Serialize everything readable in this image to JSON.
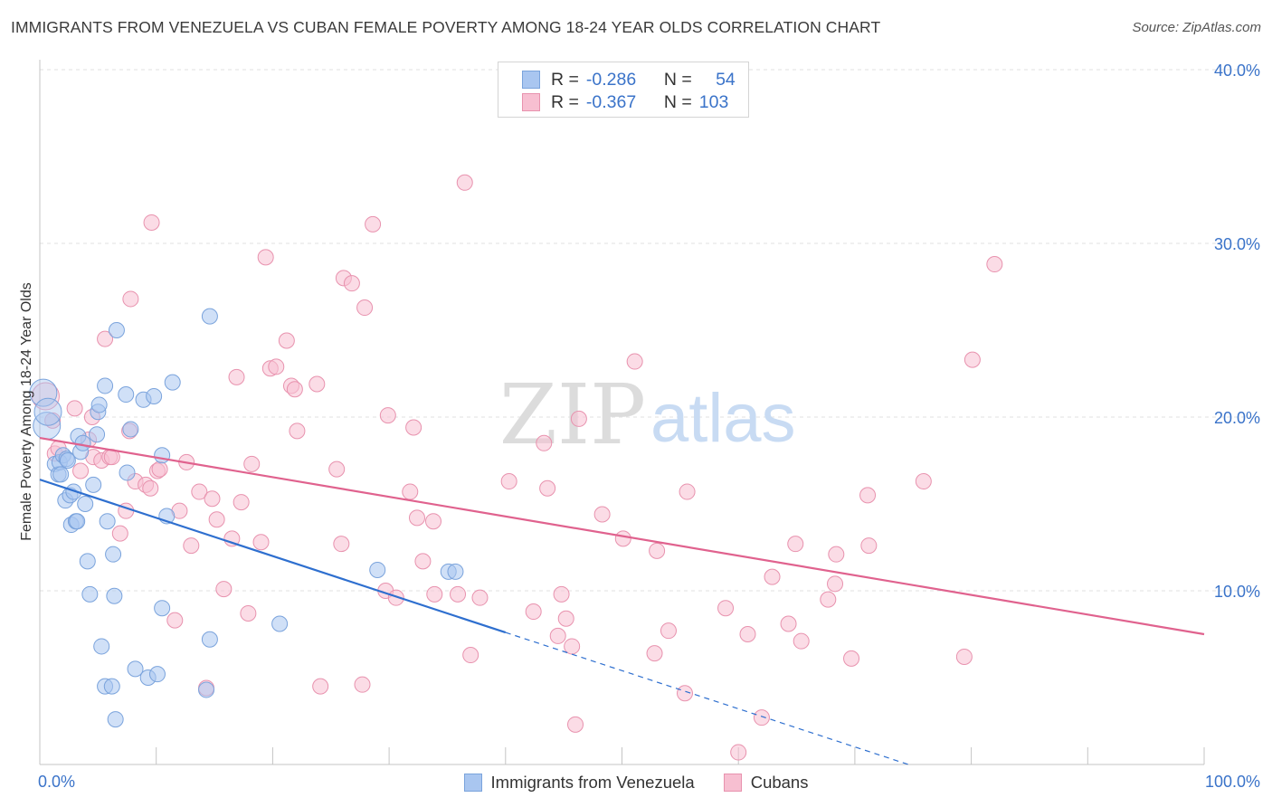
{
  "header": {
    "title": "IMMIGRANTS FROM VENEZUELA VS CUBAN FEMALE POVERTY AMONG 18-24 YEAR OLDS CORRELATION CHART",
    "source": "Source: ZipAtlas.com"
  },
  "watermark": {
    "zip": "ZIP",
    "atlas": "atlas"
  },
  "legend": {
    "rows": [
      {
        "r_label": "R =",
        "r_value": "-0.286",
        "n_label": "N =",
        "n_value": "54",
        "color": "#a9c6f0",
        "border": "#7aa3dc"
      },
      {
        "r_label": "R =",
        "r_value": "-0.367",
        "n_label": "N =",
        "n_value": "103",
        "color": "#f7bfd1",
        "border": "#e892ae"
      }
    ]
  },
  "bottom_legend": {
    "items": [
      {
        "label": "Immigrants from Venezuela",
        "color": "#a9c6f0",
        "border": "#7aa3dc"
      },
      {
        "label": "Cubans",
        "color": "#f7bfd1",
        "border": "#e892ae"
      }
    ]
  },
  "chart_data": {
    "type": "scatter",
    "title": "IMMIGRANTS FROM VENEZUELA VS CUBAN FEMALE POVERTY AMONG 18-24 YEAR OLDS CORRELATION CHART",
    "xlabel": "",
    "ylabel": "Female Poverty Among 18-24 Year Olds",
    "xlim": [
      0,
      100
    ],
    "ylim": [
      0,
      40
    ],
    "x_tick_labels": [
      {
        "value": 0,
        "label": "0.0%"
      },
      {
        "value": 100,
        "label": "100.0%"
      }
    ],
    "y_tick_labels": [
      {
        "value": 10,
        "label": "10.0%"
      },
      {
        "value": 20,
        "label": "20.0%"
      },
      {
        "value": 30,
        "label": "30.0%"
      },
      {
        "value": 40,
        "label": "40.0%"
      }
    ],
    "grid": true,
    "series": [
      {
        "name": "Immigrants from Venezuela",
        "color": "#7aa3dc",
        "fill": "#a9c6f0",
        "line_color": "#2e6fcf",
        "trend": {
          "x": [
            0,
            40
          ],
          "y": [
            16.4,
            7.6
          ]
        },
        "trend_extension": {
          "x": [
            40,
            74.6
          ],
          "y": [
            7.6,
            0
          ]
        },
        "points": [
          [
            0.3,
            21.4
          ],
          [
            0.6,
            19.5
          ],
          [
            0.7,
            20.3
          ],
          [
            1.3,
            17.3
          ],
          [
            1.6,
            16.7
          ],
          [
            1.7,
            17.4
          ],
          [
            1.8,
            16.7
          ],
          [
            2.0,
            17.8
          ],
          [
            2.2,
            15.2
          ],
          [
            2.3,
            17.6
          ],
          [
            2.4,
            17.5
          ],
          [
            2.6,
            15.5
          ],
          [
            2.7,
            13.8
          ],
          [
            2.9,
            15.7
          ],
          [
            3.1,
            14.0
          ],
          [
            3.2,
            14.0
          ],
          [
            3.3,
            18.9
          ],
          [
            3.5,
            18.0
          ],
          [
            3.7,
            18.5
          ],
          [
            3.9,
            15.0
          ],
          [
            4.1,
            11.7
          ],
          [
            4.3,
            9.8
          ],
          [
            4.6,
            16.1
          ],
          [
            4.9,
            19.0
          ],
          [
            5.0,
            20.3
          ],
          [
            5.1,
            20.7
          ],
          [
            5.3,
            6.8
          ],
          [
            5.6,
            4.5
          ],
          [
            5.6,
            21.8
          ],
          [
            5.8,
            14.0
          ],
          [
            6.2,
            4.5
          ],
          [
            6.3,
            12.1
          ],
          [
            6.4,
            9.7
          ],
          [
            6.5,
            2.6
          ],
          [
            6.6,
            25.0
          ],
          [
            7.4,
            21.3
          ],
          [
            7.5,
            16.8
          ],
          [
            7.8,
            19.3
          ],
          [
            8.2,
            5.5
          ],
          [
            8.9,
            21.0
          ],
          [
            9.3,
            5.0
          ],
          [
            9.8,
            21.2
          ],
          [
            10.1,
            5.2
          ],
          [
            10.5,
            9.0
          ],
          [
            10.5,
            17.8
          ],
          [
            10.9,
            14.3
          ],
          [
            11.4,
            22.0
          ],
          [
            14.3,
            4.3
          ],
          [
            14.6,
            7.2
          ],
          [
            14.6,
            25.8
          ],
          [
            20.6,
            8.1
          ],
          [
            29.0,
            11.2
          ],
          [
            35.1,
            11.1
          ],
          [
            35.7,
            11.1
          ]
        ]
      },
      {
        "name": "Cubans",
        "color": "#e892ae",
        "fill": "#f7bfd1",
        "line_color": "#e0628e",
        "trend": {
          "x": [
            0,
            100
          ],
          "y": [
            18.8,
            7.5
          ]
        },
        "points": [
          [
            0.5,
            21.2
          ],
          [
            1.1,
            19.8
          ],
          [
            1.3,
            17.9
          ],
          [
            1.6,
            18.2
          ],
          [
            3.0,
            20.5
          ],
          [
            3.5,
            16.9
          ],
          [
            4.2,
            18.7
          ],
          [
            4.5,
            20.0
          ],
          [
            4.6,
            17.7
          ],
          [
            5.3,
            17.5
          ],
          [
            5.6,
            24.5
          ],
          [
            6.0,
            17.7
          ],
          [
            6.2,
            17.7
          ],
          [
            6.9,
            13.3
          ],
          [
            7.4,
            14.6
          ],
          [
            7.7,
            19.2
          ],
          [
            7.8,
            26.8
          ],
          [
            8.2,
            16.3
          ],
          [
            9.1,
            16.1
          ],
          [
            9.5,
            15.9
          ],
          [
            9.6,
            31.2
          ],
          [
            10.1,
            16.9
          ],
          [
            10.3,
            17.0
          ],
          [
            11.6,
            8.3
          ],
          [
            12.0,
            14.6
          ],
          [
            12.6,
            17.4
          ],
          [
            13.0,
            12.6
          ],
          [
            13.7,
            15.7
          ],
          [
            14.3,
            4.4
          ],
          [
            14.8,
            15.3
          ],
          [
            15.2,
            14.1
          ],
          [
            15.8,
            10.1
          ],
          [
            16.5,
            13.0
          ],
          [
            16.9,
            22.3
          ],
          [
            17.3,
            15.1
          ],
          [
            17.9,
            8.7
          ],
          [
            18.2,
            17.3
          ],
          [
            19.0,
            12.8
          ],
          [
            19.4,
            29.2
          ],
          [
            19.8,
            22.8
          ],
          [
            20.3,
            22.9
          ],
          [
            21.2,
            24.4
          ],
          [
            21.6,
            21.8
          ],
          [
            21.9,
            21.6
          ],
          [
            22.1,
            19.2
          ],
          [
            23.8,
            21.9
          ],
          [
            24.1,
            4.5
          ],
          [
            25.5,
            17.0
          ],
          [
            25.9,
            12.7
          ],
          [
            26.1,
            28.0
          ],
          [
            26.8,
            27.7
          ],
          [
            27.7,
            4.6
          ],
          [
            27.9,
            26.3
          ],
          [
            28.6,
            31.1
          ],
          [
            29.7,
            10.0
          ],
          [
            29.9,
            20.1
          ],
          [
            30.6,
            9.6
          ],
          [
            31.8,
            15.7
          ],
          [
            32.1,
            19.4
          ],
          [
            32.4,
            14.2
          ],
          [
            32.9,
            11.7
          ],
          [
            33.8,
            14.0
          ],
          [
            33.9,
            9.8
          ],
          [
            35.9,
            9.8
          ],
          [
            36.5,
            33.5
          ],
          [
            37.0,
            6.3
          ],
          [
            37.8,
            9.6
          ],
          [
            40.3,
            16.3
          ],
          [
            42.4,
            8.8
          ],
          [
            43.3,
            18.5
          ],
          [
            43.6,
            15.9
          ],
          [
            44.5,
            7.4
          ],
          [
            44.8,
            9.8
          ],
          [
            45.2,
            8.4
          ],
          [
            45.7,
            6.8
          ],
          [
            46.0,
            2.3
          ],
          [
            46.3,
            19.9
          ],
          [
            48.3,
            14.4
          ],
          [
            50.1,
            13.0
          ],
          [
            51.1,
            23.2
          ],
          [
            52.8,
            6.4
          ],
          [
            53.0,
            12.3
          ],
          [
            54.0,
            7.7
          ],
          [
            55.4,
            4.1
          ],
          [
            55.6,
            15.7
          ],
          [
            58.9,
            9.0
          ],
          [
            60.0,
            0.7
          ],
          [
            60.8,
            7.5
          ],
          [
            62.0,
            2.7
          ],
          [
            62.9,
            10.8
          ],
          [
            64.3,
            8.1
          ],
          [
            64.9,
            12.7
          ],
          [
            65.4,
            7.1
          ],
          [
            67.7,
            9.5
          ],
          [
            68.3,
            10.4
          ],
          [
            68.4,
            12.1
          ],
          [
            69.7,
            6.1
          ],
          [
            71.1,
            15.5
          ],
          [
            71.2,
            12.6
          ],
          [
            75.9,
            16.3
          ],
          [
            79.4,
            6.2
          ],
          [
            80.1,
            23.3
          ],
          [
            82.0,
            28.8
          ]
        ]
      }
    ]
  }
}
